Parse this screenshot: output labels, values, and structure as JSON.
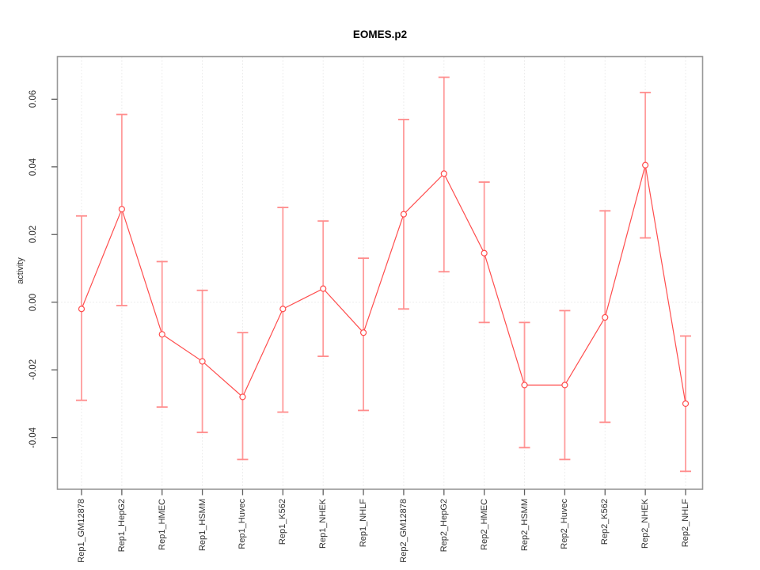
{
  "title": "EOMES.p2",
  "chart_data": {
    "type": "line",
    "title": "EOMES.p2",
    "xlabel": "",
    "ylabel": "activity",
    "legend": "none",
    "grid": "dotted vertical line at every category; dotted horizontal line at y=0",
    "marker": "open-circle",
    "error_bars": true,
    "categories": [
      "Rep1_GM12878",
      "Rep1_HepG2",
      "Rep1_HMEC",
      "Rep1_HSMM",
      "Rep1_Huvec",
      "Rep1_K562",
      "Rep1_NHEK",
      "Rep1_NHLF",
      "Rep2_GM12878",
      "Rep2_HepG2",
      "Rep2_HMEC",
      "Rep2_HSMM",
      "Rep2_Huvec",
      "Rep2_K562",
      "Rep2_NHEK",
      "Rep2_NHLF"
    ],
    "series": [
      {
        "name": "activity",
        "values": [
          -0.002,
          0.0275,
          -0.0095,
          -0.0175,
          -0.028,
          -0.002,
          0.004,
          -0.009,
          0.026,
          0.038,
          0.0145,
          -0.0245,
          -0.0245,
          -0.0045,
          0.0405,
          -0.03
        ],
        "error_high": [
          0.0255,
          0.0555,
          0.012,
          0.0035,
          -0.009,
          0.028,
          0.024,
          0.013,
          0.054,
          0.0665,
          0.0355,
          -0.006,
          -0.0025,
          0.027,
          0.062,
          -0.01
        ],
        "error_low": [
          -0.029,
          -0.001,
          -0.031,
          -0.0385,
          -0.0465,
          -0.0325,
          -0.016,
          -0.032,
          -0.002,
          0.009,
          -0.006,
          -0.043,
          -0.0465,
          -0.0355,
          0.019,
          -0.05
        ]
      }
    ],
    "yticks": [
      -0.04,
      -0.02,
      0,
      0.02,
      0.04,
      0.06
    ],
    "ylim": [
      -0.0553,
      0.0726
    ],
    "colors": {
      "line": "#ff4d4d",
      "marker": "#ff4d4d",
      "error_bar": "#ff9c9c",
      "error_cap": "#ff8c8c",
      "grid": "#dcdcdc",
      "box": "#989898",
      "tick": "#5f5f5f",
      "text": "#303030",
      "background": "#ffffff"
    }
  }
}
